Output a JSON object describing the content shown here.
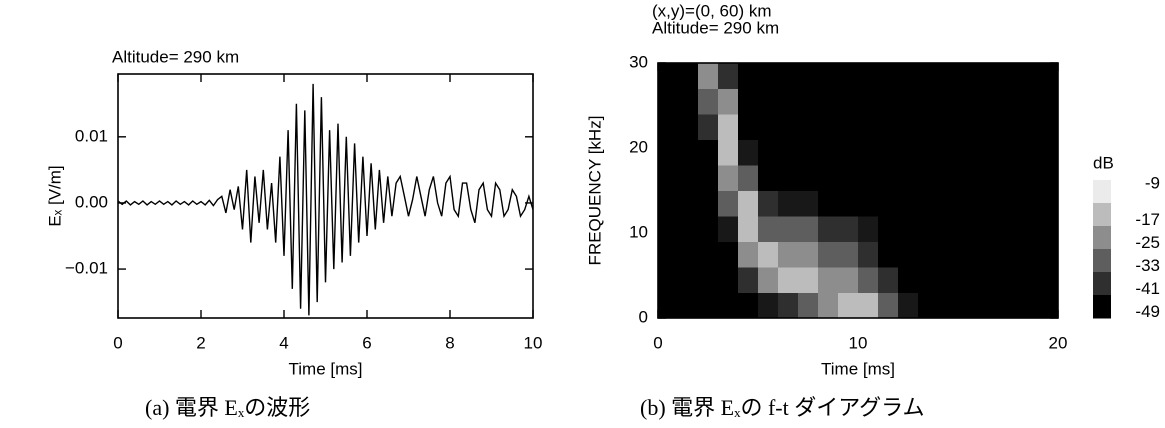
{
  "chart_data": [
    {
      "type": "line",
      "title": "Altitude= 290 km",
      "xlabel": "Time [ms]",
      "ylabel": "Eₓ  [V/m]",
      "caption": "(a) 電界 Eₓの波形",
      "color": "#000000",
      "x": [
        0,
        0.1,
        0.2,
        0.3,
        0.4,
        0.5,
        0.6,
        0.7,
        0.8,
        0.9,
        1,
        1.1,
        1.2,
        1.3,
        1.4,
        1.5,
        1.6,
        1.7,
        1.8,
        1.9,
        2,
        2.1,
        2.2,
        2.3,
        2.4,
        2.5,
        2.6,
        2.7,
        2.8,
        2.9,
        3,
        3.1,
        3.2,
        3.3,
        3.4,
        3.5,
        3.6,
        3.7,
        3.8,
        3.9,
        4,
        4.1,
        4.2,
        4.3,
        4.4,
        4.5,
        4.6,
        4.7,
        4.8,
        4.9,
        5,
        5.1,
        5.2,
        5.3,
        5.4,
        5.5,
        5.6,
        5.7,
        5.8,
        5.9,
        6,
        6.1,
        6.2,
        6.3,
        6.4,
        6.5,
        6.6,
        6.7,
        6.8,
        6.9,
        7,
        7.1,
        7.2,
        7.3,
        7.4,
        7.5,
        7.6,
        7.7,
        7.8,
        7.9,
        8,
        8.1,
        8.2,
        8.3,
        8.4,
        8.5,
        8.6,
        8.7,
        8.8,
        8.9,
        9,
        9.1,
        9.2,
        9.3,
        9.4,
        9.5,
        9.6,
        9.7,
        9.8,
        9.9,
        10
      ],
      "values": [
        0.0003,
        -0.0002,
        0.0003,
        -0.0003,
        0.0002,
        -0.0002,
        0.0003,
        -0.0003,
        0.0002,
        -0.0002,
        0.0003,
        -0.0002,
        0.0002,
        -0.0003,
        0.0003,
        -0.0002,
        0.0002,
        -0.0003,
        0.0003,
        -0.0002,
        0.0002,
        -0.0003,
        0.0004,
        -0.0004,
        0.0005,
        0.001,
        -0.0015,
        0.002,
        -0.001,
        0.0025,
        -0.004,
        0.005,
        -0.006,
        0.004,
        -0.003,
        0.005,
        -0.004,
        0.003,
        -0.006,
        0.007,
        -0.008,
        0.011,
        -0.013,
        0.015,
        -0.016,
        0.014,
        -0.017,
        0.018,
        -0.015,
        0.016,
        -0.012,
        0.011,
        -0.01,
        0.012,
        -0.009,
        0.01,
        -0.008,
        0.009,
        -0.006,
        0.007,
        -0.005,
        0.006,
        -0.004,
        0.005,
        -0.003,
        0.004,
        -0.002,
        0.003,
        0.004,
        0.001,
        -0.002,
        0.0005,
        0.004,
        0.001,
        -0.002,
        0.002,
        0.004,
        0,
        -0.002,
        0.003,
        0.004,
        -0.001,
        -0.002,
        0.003,
        0.003,
        -0.001,
        -0.003,
        0.002,
        0.003,
        -0.001,
        -0.002,
        0.003,
        0.002,
        -0.002,
        -0.001,
        0.002,
        0.001,
        -0.002,
        -0.001,
        0.001,
        -0.001
      ],
      "xlim": [
        0,
        10
      ],
      "xticks": [
        0,
        2,
        4,
        6,
        8,
        10
      ],
      "ylim": [
        -0.0174,
        0.0195
      ],
      "yticks": [
        0.01,
        {
          "value": 0,
          "label": "0.00"
        },
        {
          "value": -0.01,
          "label": "−0.01"
        }
      ]
    },
    {
      "type": "heatmap",
      "title": "(x,y)=(0, 60) km",
      "subtitle": "Altitude= 290 km",
      "xlabel": "Time [ms]",
      "ylabel": "FREQUENCY  [kHz]",
      "caption": "(b) 電界 Eₓの f-t ダイアグラム",
      "xbins": [
        0,
        1,
        2,
        3,
        4,
        5,
        6,
        7,
        8,
        9,
        10,
        11,
        12,
        13,
        14,
        15,
        16,
        17,
        18,
        19,
        20
      ],
      "ybins": [
        0,
        3,
        6,
        9,
        12,
        15,
        18,
        21,
        24,
        27,
        30
      ],
      "z": [
        [
          -49,
          -49,
          -49,
          -49,
          -49,
          -45,
          -41,
          -33,
          -25,
          -17,
          -17,
          -33,
          -45,
          -49,
          -49,
          -49,
          -49,
          -49,
          -49,
          -49
        ],
        [
          -49,
          -49,
          -49,
          -49,
          -41,
          -25,
          -17,
          -17,
          -25,
          -25,
          -33,
          -41,
          -49,
          -49,
          -49,
          -49,
          -49,
          -49,
          -49,
          -49
        ],
        [
          -49,
          -49,
          -49,
          -49,
          -25,
          -17,
          -25,
          -25,
          -33,
          -33,
          -41,
          -49,
          -49,
          -49,
          -49,
          -49,
          -49,
          -49,
          -49,
          -49
        ],
        [
          -49,
          -49,
          -49,
          -45,
          -17,
          -33,
          -33,
          -33,
          -41,
          -41,
          -45,
          -49,
          -49,
          -49,
          -49,
          -49,
          -49,
          -49,
          -49,
          -49
        ],
        [
          -49,
          -49,
          -49,
          -33,
          -17,
          -41,
          -45,
          -45,
          -49,
          -49,
          -49,
          -49,
          -49,
          -49,
          -49,
          -49,
          -49,
          -49,
          -49,
          -49
        ],
        [
          -49,
          -49,
          -49,
          -25,
          -33,
          -49,
          -49,
          -49,
          -49,
          -49,
          -49,
          -49,
          -49,
          -49,
          -49,
          -49,
          -49,
          -49,
          -49,
          -49
        ],
        [
          -49,
          -49,
          -49,
          -17,
          -45,
          -49,
          -49,
          -49,
          -49,
          -49,
          -49,
          -49,
          -49,
          -49,
          -49,
          -49,
          -49,
          -49,
          -49,
          -49
        ],
        [
          -49,
          -49,
          -41,
          -17,
          -49,
          -49,
          -49,
          -49,
          -49,
          -49,
          -49,
          -49,
          -49,
          -49,
          -49,
          -49,
          -49,
          -49,
          -49,
          -49
        ],
        [
          -49,
          -49,
          -33,
          -25,
          -49,
          -49,
          -49,
          -49,
          -49,
          -49,
          -49,
          -49,
          -49,
          -49,
          -49,
          -49,
          -49,
          -49,
          -49,
          -49
        ],
        [
          -49,
          -49,
          -25,
          -41,
          -49,
          -49,
          -49,
          -49,
          -49,
          -49,
          -49,
          -49,
          -49,
          -49,
          -49,
          -49,
          -49,
          -49,
          -49,
          -49
        ]
      ],
      "zlim": [
        -49,
        -9
      ],
      "colorbar_label": "dB",
      "colorbar_ticks": [
        -9,
        -17,
        -25,
        -33,
        -41,
        -49
      ],
      "xlim": [
        0,
        20
      ],
      "xticks": [
        0,
        10,
        20
      ],
      "ylim": [
        0,
        30
      ],
      "yticks": [
        0,
        10,
        20,
        30
      ]
    }
  ]
}
